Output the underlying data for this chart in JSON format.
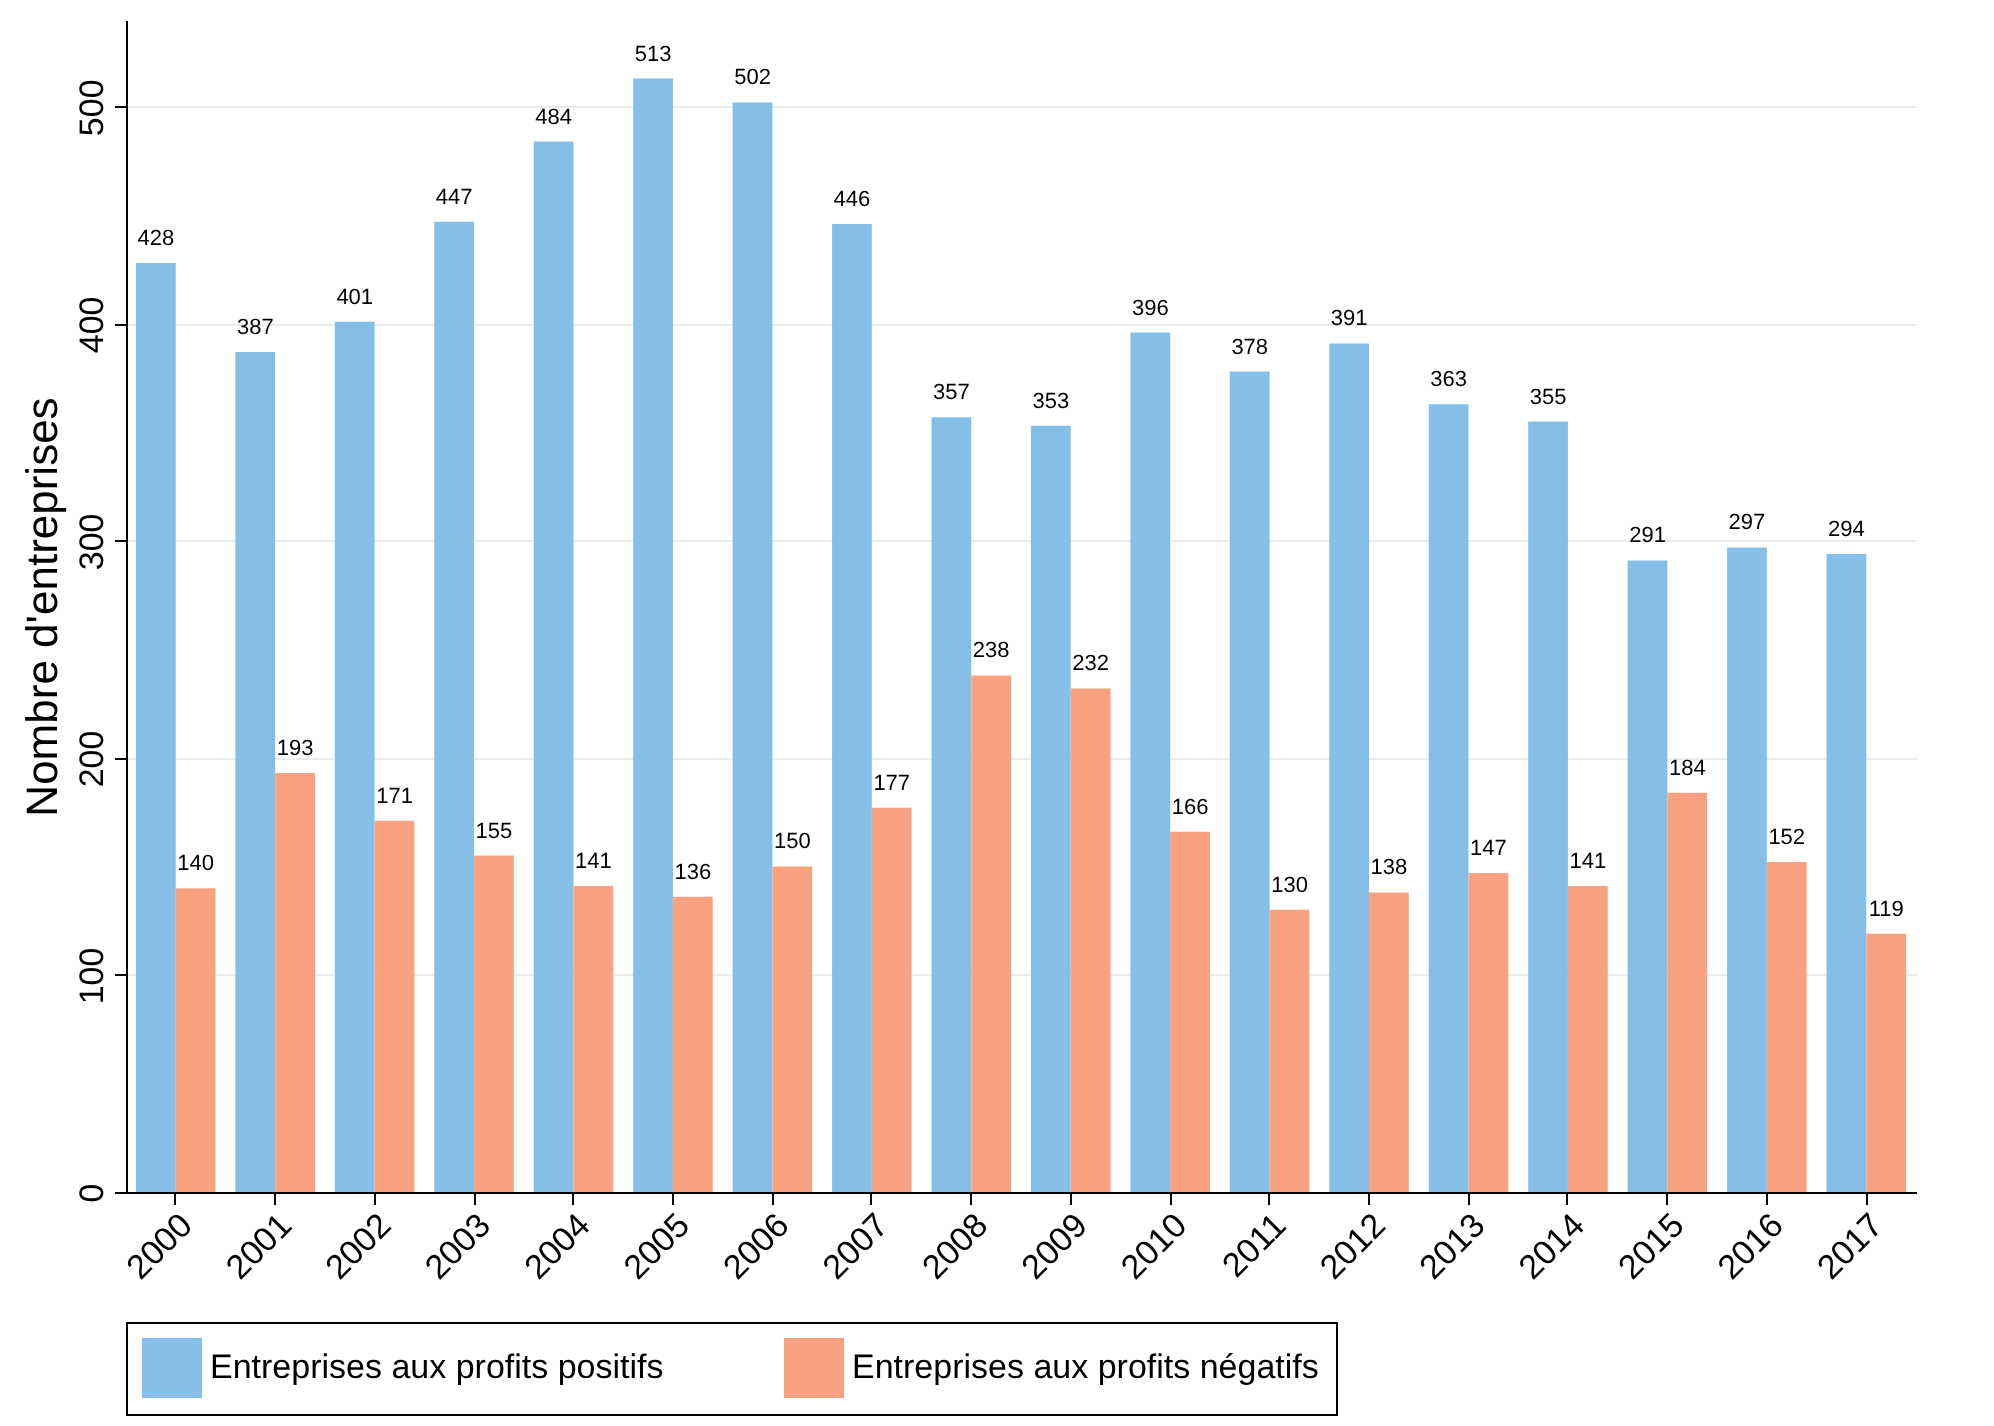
{
  "chart_data": {
    "type": "bar",
    "ylabel": "Nombre d'entreprises",
    "categories": [
      "2000",
      "2001",
      "2002",
      "2003",
      "2004",
      "2005",
      "2006",
      "2007",
      "2008",
      "2009",
      "2010",
      "2011",
      "2012",
      "2013",
      "2014",
      "2015",
      "2016",
      "2017"
    ],
    "series": [
      {
        "name": "Entreprises aux profits positifs",
        "color": "#85bfe8",
        "values": [
          428,
          387,
          401,
          447,
          484,
          513,
          502,
          446,
          357,
          353,
          396,
          378,
          391,
          363,
          355,
          291,
          297,
          294
        ]
      },
      {
        "name": "Entreprises aux profits négatifs",
        "color": "#f9a282",
        "values": [
          140,
          193,
          171,
          155,
          141,
          136,
          150,
          177,
          238,
          232,
          166,
          130,
          138,
          147,
          141,
          184,
          152,
          119
        ]
      }
    ],
    "ylim": [
      0,
      540
    ],
    "yticks": [
      0,
      100,
      200,
      300,
      400,
      500
    ],
    "grid": "y",
    "legend": "bottom",
    "data_labels": true
  }
}
